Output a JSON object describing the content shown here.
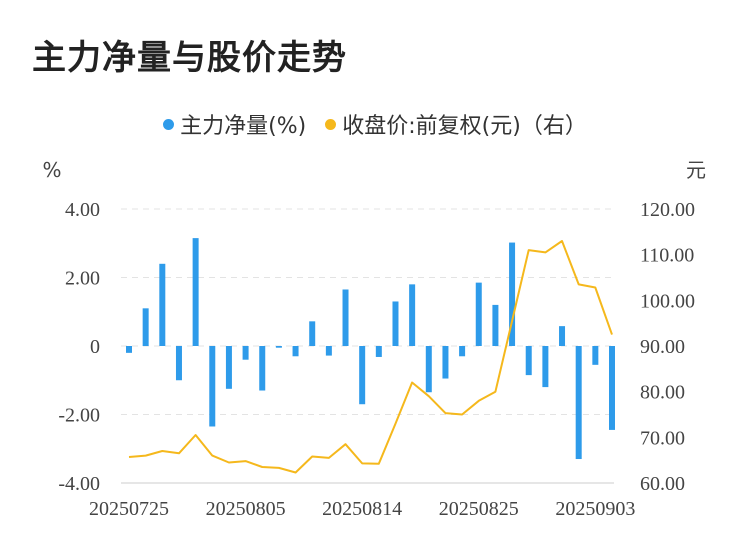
{
  "chart_data": {
    "type": "bar+line",
    "title": "主力净量与股价走势",
    "legend": [
      {
        "name": "主力净量(%)",
        "color": "#2e9bea"
      },
      {
        "name": "收盘价:前复权(元)（右）",
        "color": "#f5b81c"
      }
    ],
    "left_unit": "%",
    "right_unit": "元",
    "left_ylim": [
      -4,
      4
    ],
    "right_ylim": [
      60,
      120
    ],
    "left_ticks": [
      "4.00",
      "2.00",
      "0",
      "-2.00",
      "-4.00"
    ],
    "right_ticks": [
      "120.00",
      "110.00",
      "100.00",
      "90.00",
      "80.00",
      "70.00",
      "60.00"
    ],
    "x_tick_labels": [
      "20250725",
      "20250805",
      "20250814",
      "20250825",
      "20250903"
    ],
    "grid": "horizontal dashed",
    "legend_position": "top-center",
    "series": [
      {
        "name": "主力净量(%)",
        "type": "bar",
        "values": [
          -0.2,
          1.1,
          2.4,
          -1.0,
          3.15,
          -2.35,
          -1.25,
          -0.4,
          -1.3,
          -0.05,
          -0.3,
          0.72,
          -0.28,
          1.65,
          -1.7,
          -0.32,
          1.3,
          1.8,
          -1.35,
          -0.95,
          -0.3,
          1.85,
          1.2,
          3.02,
          -0.85,
          -1.2,
          0.58,
          -3.3,
          -0.55,
          -2.45
        ]
      },
      {
        "name": "收盘价:前复权(元)（右）",
        "type": "line",
        "values": [
          65.7,
          66.0,
          67.0,
          66.5,
          70.5,
          66.0,
          64.5,
          64.8,
          63.5,
          63.3,
          62.3,
          65.8,
          65.5,
          68.5,
          64.3,
          64.2,
          73.0,
          82.0,
          79.0,
          75.3,
          75.0,
          78.0,
          80.0,
          95.5,
          111.0,
          110.5,
          113.0,
          103.5,
          102.8,
          92.5
        ]
      }
    ]
  }
}
